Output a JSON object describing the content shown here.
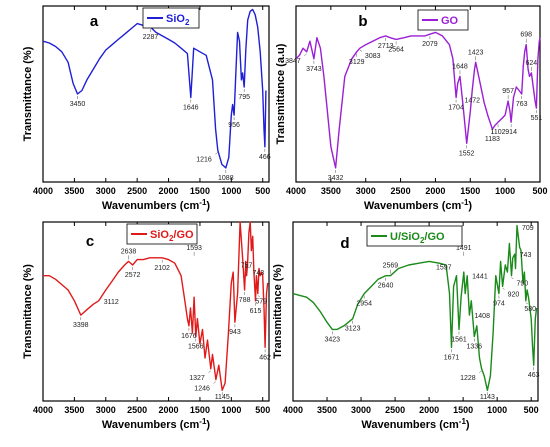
{
  "chart_data": [
    {
      "type": "line",
      "panel_label": "a",
      "legend": "SiO",
      "legend_sub": "2",
      "legend_sup": "",
      "color": "#1f1fd6",
      "xlabel_main": "Wavenumbers (cm",
      "xlabel_sup": "-1",
      "xlabel_end": ")",
      "ylabel": "Transmittance (%)",
      "xlim": [
        4000,
        400
      ],
      "ylim": [
        0,
        100
      ],
      "grid": false,
      "xticks": [
        4000,
        3500,
        3000,
        2500,
        2000,
        1500,
        1000,
        500
      ],
      "xtick_labels": [
        "4000",
        "3500",
        "3000",
        "2500",
        "2000",
        "1500",
        "1000",
        "500"
      ],
      "x": [
        4000,
        3900,
        3800,
        3700,
        3600,
        3520,
        3450,
        3380,
        3300,
        3200,
        3100,
        3000,
        2900,
        2800,
        2700,
        2600,
        2500,
        2400,
        2287,
        2200,
        2100,
        2000,
        1900,
        1800,
        1700,
        1646,
        1600,
        1500,
        1400,
        1300,
        1250,
        1216,
        1150,
        1088,
        1040,
        1000,
        980,
        956,
        930,
        900,
        870,
        840,
        820,
        795,
        770,
        740,
        700,
        660,
        620,
        580,
        540,
        500,
        480,
        466,
        450
      ],
      "y": [
        80,
        79,
        77,
        74,
        68,
        56,
        50,
        52,
        58,
        64,
        70,
        75,
        78,
        81,
        84,
        87,
        90,
        89,
        88,
        85,
        83,
        81,
        79,
        76,
        73,
        48,
        76,
        74,
        72,
        58,
        30,
        18,
        10,
        8,
        14,
        38,
        44,
        38,
        60,
        85,
        80,
        58,
        62,
        54,
        75,
        92,
        97,
        98,
        95,
        88,
        74,
        52,
        30,
        20,
        52
      ],
      "peaks": [
        {
          "label": "3450",
          "x": 3450,
          "y": 50,
          "pos": "below"
        },
        {
          "label": "2287",
          "x": 2287,
          "y": 88,
          "pos": "below"
        },
        {
          "label": "1646",
          "x": 1646,
          "y": 48,
          "pos": "below"
        },
        {
          "label": "1216",
          "x": 1216,
          "y": 18,
          "pos": "below-left"
        },
        {
          "label": "1088",
          "x": 1088,
          "y": 8,
          "pos": "below"
        },
        {
          "label": "956",
          "x": 956,
          "y": 38,
          "pos": "below"
        },
        {
          "label": "795",
          "x": 795,
          "y": 54,
          "pos": "below"
        },
        {
          "label": "466",
          "x": 466,
          "y": 20,
          "pos": "below"
        }
      ]
    },
    {
      "type": "line",
      "panel_label": "b",
      "legend": "GO",
      "legend_sub": "",
      "legend_sup": "",
      "color": "#9b1fd6",
      "xlabel_main": "Wavenumbers (cm",
      "xlabel_sup": "-1",
      "xlabel_end": ")",
      "ylabel": "Transmittance (a.u)",
      "xlim": [
        4000,
        500
      ],
      "ylim": [
        0,
        100
      ],
      "grid": false,
      "xticks": [
        4000,
        3500,
        3000,
        2500,
        2000,
        1500,
        1000,
        500
      ],
      "xtick_labels": [
        "4000",
        "3500",
        "3000",
        "2500",
        "2000",
        "1500",
        "1000",
        "500"
      ],
      "x": [
        4000,
        3950,
        3900,
        3847,
        3800,
        3743,
        3700,
        3650,
        3600,
        3550,
        3500,
        3432,
        3380,
        3300,
        3200,
        3129,
        3083,
        3000,
        2900,
        2800,
        2713,
        2650,
        2564,
        2450,
        2350,
        2250,
        2150,
        2079,
        2000,
        1900,
        1800,
        1750,
        1704,
        1680,
        1648,
        1600,
        1552,
        1500,
        1472,
        1440,
        1423,
        1380,
        1300,
        1250,
        1183,
        1150,
        1102,
        1050,
        1000,
        957,
        930,
        914,
        880,
        840,
        800,
        763,
        740,
        720,
        698,
        670,
        650,
        624,
        600,
        570,
        551,
        530,
        510,
        500
      ],
      "y": [
        70,
        72,
        76,
        74,
        80,
        70,
        82,
        76,
        60,
        40,
        20,
        8,
        30,
        60,
        70,
        74,
        76,
        78,
        80,
        82,
        83,
        82,
        81,
        82,
        83,
        83,
        83,
        84,
        85,
        83,
        78,
        70,
        48,
        56,
        60,
        42,
        22,
        40,
        52,
        64,
        68,
        60,
        45,
        38,
        30,
        32,
        34,
        36,
        38,
        46,
        40,
        34,
        48,
        54,
        52,
        50,
        66,
        74,
        78,
        64,
        60,
        62,
        55,
        46,
        42,
        70,
        80,
        82
      ],
      "peaks": [
        {
          "label": "3847",
          "x": 3847,
          "y": 74,
          "pos": "below-left"
        },
        {
          "label": "3743",
          "x": 3743,
          "y": 70,
          "pos": "below"
        },
        {
          "label": "3432",
          "x": 3432,
          "y": 8,
          "pos": "below"
        },
        {
          "label": "3129",
          "x": 3129,
          "y": 74,
          "pos": "below"
        },
        {
          "label": "3083",
          "x": 3083,
          "y": 76,
          "pos": "below-right"
        },
        {
          "label": "2713",
          "x": 2713,
          "y": 83,
          "pos": "below"
        },
        {
          "label": "2564",
          "x": 2564,
          "y": 81,
          "pos": "below"
        },
        {
          "label": "2079",
          "x": 2079,
          "y": 84,
          "pos": "below"
        },
        {
          "label": "1704",
          "x": 1704,
          "y": 48,
          "pos": "below"
        },
        {
          "label": "1648",
          "x": 1648,
          "y": 60,
          "pos": "above"
        },
        {
          "label": "1552",
          "x": 1552,
          "y": 22,
          "pos": "below"
        },
        {
          "label": "1472",
          "x": 1472,
          "y": 52,
          "pos": "below"
        },
        {
          "label": "1423",
          "x": 1423,
          "y": 68,
          "pos": "above"
        },
        {
          "label": "1183",
          "x": 1183,
          "y": 30,
          "pos": "below"
        },
        {
          "label": "1102",
          "x": 1102,
          "y": 34,
          "pos": "below"
        },
        {
          "label": "957",
          "x": 957,
          "y": 46,
          "pos": "above"
        },
        {
          "label": "914",
          "x": 914,
          "y": 34,
          "pos": "below"
        },
        {
          "label": "763",
          "x": 763,
          "y": 50,
          "pos": "below"
        },
        {
          "label": "698",
          "x": 698,
          "y": 78,
          "pos": "above"
        },
        {
          "label": "624",
          "x": 624,
          "y": 62,
          "pos": "above"
        },
        {
          "label": "551",
          "x": 551,
          "y": 42,
          "pos": "below"
        }
      ]
    },
    {
      "type": "line",
      "panel_label": "c",
      "legend": "SiO",
      "legend_sub": "2",
      "legend_sup": "",
      "legend_end": "/GO",
      "color": "#e01a1a",
      "xlabel_main": "Wavenumbers (cm",
      "xlabel_sup": "-1",
      "xlabel_end": ")",
      "ylabel": "Transmittance (%)",
      "xlim": [
        4000,
        400
      ],
      "ylim": [
        0,
        100
      ],
      "grid": false,
      "xticks": [
        4000,
        3500,
        3000,
        2500,
        2000,
        1500,
        1000,
        500
      ],
      "xtick_labels": [
        "4000",
        "3500",
        "3000",
        "2500",
        "2000",
        "1500",
        "1000",
        "500"
      ],
      "x": [
        4000,
        3900,
        3800,
        3700,
        3600,
        3500,
        3398,
        3300,
        3200,
        3112,
        3000,
        2900,
        2800,
        2700,
        2638,
        2572,
        2500,
        2400,
        2300,
        2200,
        2102,
        2000,
        1900,
        1800,
        1750,
        1700,
        1676,
        1650,
        1620,
        1593,
        1566,
        1540,
        1500,
        1460,
        1420,
        1380,
        1327,
        1300,
        1246,
        1200,
        1145,
        1100,
        1050,
        1000,
        970,
        943,
        900,
        860,
        820,
        788,
        770,
        757,
        743,
        720,
        700,
        680,
        660,
        640,
        615,
        600,
        579,
        560,
        540,
        520,
        500,
        480,
        462,
        440,
        420
      ],
      "y": [
        70,
        70,
        68,
        65,
        62,
        56,
        48,
        51,
        54,
        56,
        62,
        67,
        72,
        76,
        78,
        76,
        79,
        79,
        80,
        80,
        80,
        79,
        77,
        70,
        58,
        46,
        42,
        52,
        38,
        58,
        36,
        46,
        32,
        40,
        24,
        34,
        18,
        26,
        12,
        20,
        6,
        10,
        36,
        66,
        72,
        44,
        60,
        100,
        80,
        62,
        78,
        70,
        76,
        94,
        100,
        84,
        92,
        72,
        56,
        70,
        60,
        74,
        70,
        72,
        70,
        52,
        30,
        60,
        66
      ],
      "peaks": [
        {
          "label": "3398",
          "x": 3398,
          "y": 48,
          "pos": "below"
        },
        {
          "label": "3112",
          "x": 3112,
          "y": 56,
          "pos": "right"
        },
        {
          "label": "2638",
          "x": 2638,
          "y": 78,
          "pos": "above"
        },
        {
          "label": "2572",
          "x": 2572,
          "y": 76,
          "pos": "below"
        },
        {
          "label": "2102",
          "x": 2102,
          "y": 80,
          "pos": "below"
        },
        {
          "label": "1593",
          "x": 1593,
          "y": 80,
          "pos": "above"
        },
        {
          "label": "1676",
          "x": 1676,
          "y": 42,
          "pos": "below"
        },
        {
          "label": "1566",
          "x": 1566,
          "y": 36,
          "pos": "below"
        },
        {
          "label": "1327",
          "x": 1327,
          "y": 18,
          "pos": "below-left"
        },
        {
          "label": "1246",
          "x": 1246,
          "y": 12,
          "pos": "below-left"
        },
        {
          "label": "1145",
          "x": 1145,
          "y": 6,
          "pos": "below"
        },
        {
          "label": "943",
          "x": 943,
          "y": 44,
          "pos": "below"
        },
        {
          "label": "788",
          "x": 788,
          "y": 62,
          "pos": "below"
        },
        {
          "label": "757",
          "x": 757,
          "y": 70,
          "pos": "above"
        },
        {
          "label": "743",
          "x": 743,
          "y": 76,
          "pos": "below-right"
        },
        {
          "label": "615",
          "x": 615,
          "y": 56,
          "pos": "below"
        },
        {
          "label": "579",
          "x": 579,
          "y": 60,
          "pos": "below-right"
        },
        {
          "label": "462",
          "x": 462,
          "y": 30,
          "pos": "below"
        }
      ]
    },
    {
      "type": "line",
      "panel_label": "d",
      "legend": "U/SiO",
      "legend_sub": "2",
      "legend_sup": "",
      "legend_end": "/GO",
      "color": "#1a8a1a",
      "xlabel_main": "Wavenumbers (cm",
      "xlabel_sup": "-1",
      "xlabel_end": ")",
      "ylabel": "Transmittance (%)",
      "xlim": [
        4000,
        400
      ],
      "ylim": [
        0,
        100
      ],
      "grid": false,
      "xticks": [
        4000,
        3500,
        3000,
        2500,
        2000,
        1500,
        1000,
        500
      ],
      "xtick_labels": [
        "4000",
        "3500",
        "3000",
        "2500",
        "2000",
        "1500",
        "1000",
        "500"
      ],
      "x": [
        4000,
        3900,
        3800,
        3700,
        3600,
        3500,
        3423,
        3350,
        3250,
        3123,
        3050,
        2954,
        2850,
        2750,
        2640,
        2569,
        2450,
        2300,
        2150,
        2000,
        1850,
        1750,
        1700,
        1671,
        1640,
        1597,
        1561,
        1530,
        1491,
        1470,
        1441,
        1408,
        1380,
        1336,
        1300,
        1260,
        1228,
        1190,
        1143,
        1100,
        1060,
        1020,
        974,
        950,
        920,
        880,
        850,
        820,
        790,
        770,
        743,
        730,
        709,
        690,
        670,
        650,
        620,
        600,
        580,
        560,
        540,
        500,
        480,
        463,
        440,
        420
      ],
      "y": [
        60,
        59,
        58,
        55,
        50,
        44,
        40,
        40,
        42,
        46,
        54,
        60,
        64,
        68,
        70,
        70,
        74,
        76,
        77,
        78,
        77,
        76,
        60,
        30,
        64,
        70,
        40,
        58,
        72,
        60,
        70,
        48,
        56,
        36,
        42,
        24,
        18,
        14,
        6,
        14,
        38,
        70,
        60,
        78,
        64,
        76,
        72,
        88,
        70,
        80,
        82,
        74,
        98,
        92,
        86,
        84,
        66,
        72,
        56,
        62,
        58,
        46,
        30,
        20,
        46,
        52
      ],
      "peaks": [
        {
          "label": "3423",
          "x": 3423,
          "y": 40,
          "pos": "below"
        },
        {
          "label": "3123",
          "x": 3123,
          "y": 46,
          "pos": "below"
        },
        {
          "label": "2954",
          "x": 2954,
          "y": 60,
          "pos": "below"
        },
        {
          "label": "2640",
          "x": 2640,
          "y": 70,
          "pos": "below"
        },
        {
          "label": "2569",
          "x": 2569,
          "y": 70,
          "pos": "above"
        },
        {
          "label": "1671",
          "x": 1671,
          "y": 30,
          "pos": "below"
        },
        {
          "label": "1597",
          "x": 1597,
          "y": 70,
          "pos": "above-left"
        },
        {
          "label": "1561",
          "x": 1561,
          "y": 40,
          "pos": "below"
        },
        {
          "label": "1491",
          "x": 1491,
          "y": 80,
          "pos": "above"
        },
        {
          "label": "1441",
          "x": 1441,
          "y": 70,
          "pos": "right"
        },
        {
          "label": "1408",
          "x": 1408,
          "y": 48,
          "pos": "right"
        },
        {
          "label": "1336",
          "x": 1336,
          "y": 36,
          "pos": "below"
        },
        {
          "label": "1228",
          "x": 1228,
          "y": 18,
          "pos": "below-left"
        },
        {
          "label": "1143",
          "x": 1143,
          "y": 6,
          "pos": "below"
        },
        {
          "label": "974",
          "x": 974,
          "y": 60,
          "pos": "below"
        },
        {
          "label": "920",
          "x": 920,
          "y": 64,
          "pos": "below-right"
        },
        {
          "label": "790",
          "x": 790,
          "y": 70,
          "pos": "below-right"
        },
        {
          "label": "743",
          "x": 743,
          "y": 82,
          "pos": "right"
        },
        {
          "label": "709",
          "x": 709,
          "y": 98,
          "pos": "right"
        },
        {
          "label": "580",
          "x": 580,
          "y": 56,
          "pos": "below-right"
        },
        {
          "label": "463",
          "x": 463,
          "y": 20,
          "pos": "below"
        }
      ]
    }
  ]
}
